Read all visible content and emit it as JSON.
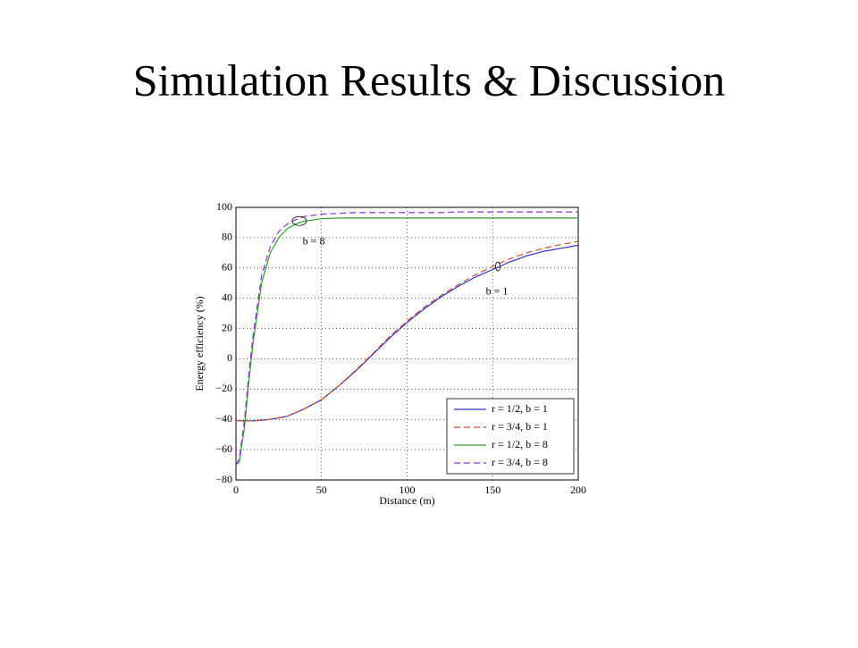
{
  "slide_title": "Simulation Results & Discussion",
  "chart_data": {
    "type": "line",
    "xlabel": "Distance (m)",
    "ylabel": "Energy efficiency (%)",
    "x": [
      0,
      2,
      5,
      8,
      10,
      15,
      20,
      25,
      30,
      35,
      40,
      50,
      60,
      70,
      80,
      90,
      100,
      110,
      120,
      130,
      140,
      150,
      160,
      170,
      180,
      190,
      200
    ],
    "series": [
      {
        "name": "r = 1/2, b = 1",
        "color": "#3030c8",
        "dashed": false,
        "values": [
          -41,
          -41,
          -41,
          -41,
          -41,
          -40.5,
          -40,
          -39,
          -38,
          -35.5,
          -33,
          -27,
          -18,
          -8,
          3,
          14,
          24,
          33,
          41,
          48,
          54,
          59,
          64,
          68,
          71,
          73,
          75
        ]
      },
      {
        "name": "r = 3/4, b = 1",
        "color": "#c85030",
        "dashed": true,
        "values": [
          -41,
          -41,
          -41,
          -41,
          -41,
          -40.5,
          -40,
          -39,
          -38,
          -35.5,
          -33,
          -27,
          -18,
          -7.5,
          3.5,
          15,
          25,
          34,
          42,
          49,
          55.5,
          61,
          66,
          70,
          73,
          75.5,
          77.5
        ]
      },
      {
        "name": "r = 1/2, b = 8",
        "color": "#30a030",
        "dashed": false,
        "values": [
          -70,
          -68,
          -45,
          -10,
          10,
          50,
          70,
          80,
          86,
          89,
          91,
          92.5,
          93,
          93,
          93,
          93,
          93,
          93,
          93,
          93,
          93,
          93,
          93,
          93,
          93,
          93,
          93
        ]
      },
      {
        "name": "r = 3/4, b = 8",
        "color": "#9030c8",
        "dashed": true,
        "values": [
          -70,
          -66,
          -40,
          -5,
          15,
          55,
          74,
          84,
          89,
          92,
          94,
          95.5,
          96,
          96.5,
          96.5,
          96.5,
          96.5,
          96.5,
          96.5,
          97,
          97,
          97,
          97,
          97,
          97,
          97,
          97
        ]
      }
    ],
    "annotations": [
      "b = 8",
      "b = 1"
    ],
    "xlim": [
      0,
      200
    ],
    "ylim": [
      -80,
      100
    ],
    "xticks": [
      0,
      50,
      100,
      150,
      200
    ],
    "yticks": [
      {
        "value": -80,
        "label": "−80"
      },
      {
        "value": -60,
        "label": "−60"
      },
      {
        "value": -40,
        "label": "−40"
      },
      {
        "value": -20,
        "label": "−20"
      },
      0,
      20,
      40,
      60,
      80,
      100
    ],
    "grid": true,
    "legend": "lower right"
  }
}
